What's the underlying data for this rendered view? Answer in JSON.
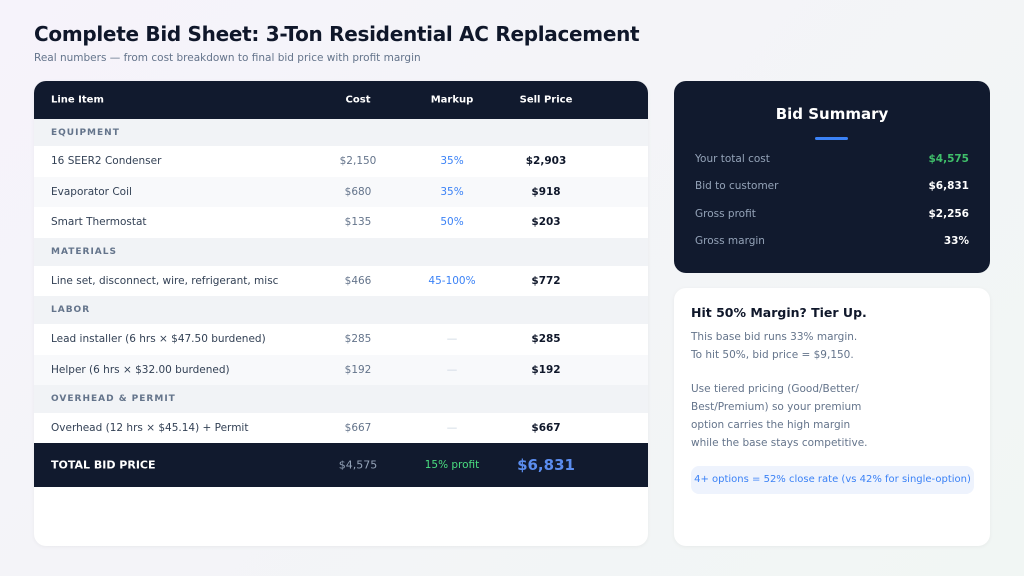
{
  "header": {
    "title": "Complete Bid Sheet: 3-Ton Residential AC Replacement",
    "subtitle": "Real numbers — from cost breakdown to final bid price with profit margin"
  },
  "table": {
    "columns": [
      "Line Item",
      "Cost",
      "Markup",
      "Sell Price"
    ],
    "rows": [
      {
        "section": "EQUIPMENT"
      },
      {
        "cells": [
          "16 SEER2 Condenser",
          "$2,150",
          "35%",
          "$2,903"
        ]
      },
      {
        "cells": [
          "Evaporator Coil",
          "$680",
          "35%",
          "$918"
        ]
      },
      {
        "cells": [
          "Smart Thermostat",
          "$135",
          "50%",
          "$203"
        ]
      },
      {
        "section": "MATERIALS"
      },
      {
        "cells": [
          "Line set, disconnect, wire, refrigerant, misc",
          "$466",
          "45-100%",
          "$772"
        ]
      },
      {
        "section": "LABOR"
      },
      {
        "cells": [
          "Lead installer (6 hrs × $47.50 burdened)",
          "$285",
          "—",
          "$285"
        ]
      },
      {
        "cells": [
          "Helper (6 hrs × $32.00 burdened)",
          "$192",
          "—",
          "$192"
        ]
      },
      {
        "section": "OVERHEAD & PERMIT"
      },
      {
        "cells": [
          "Overhead (12 hrs × $45.14) + Permit",
          "$667",
          "—",
          "$667"
        ]
      }
    ],
    "total": [
      "TOTAL BID PRICE",
      "$4,575",
      "15% profit",
      "$6,831"
    ]
  },
  "summary": {
    "title": "Bid Summary",
    "rows": [
      [
        "Your total cost",
        "$4,575"
      ],
      [
        "Bid to customer",
        "$6,831"
      ],
      [
        "Gross profit",
        "$2,256"
      ],
      [
        "Gross margin",
        "33%"
      ]
    ]
  },
  "tip": {
    "title": "Hit 50% Margin? Tier Up.",
    "paragraphs": [
      [
        "This base bid runs 33% margin.",
        "To hit 50%, bid price = $9,150."
      ],
      [
        "Use tiered pricing (Good/Better/",
        "Best/Premium) so your premium",
        "option carries the high margin",
        "while the base stays competitive."
      ]
    ],
    "callout": "4+ options = 52% close rate (vs 42% for single-option)"
  }
}
